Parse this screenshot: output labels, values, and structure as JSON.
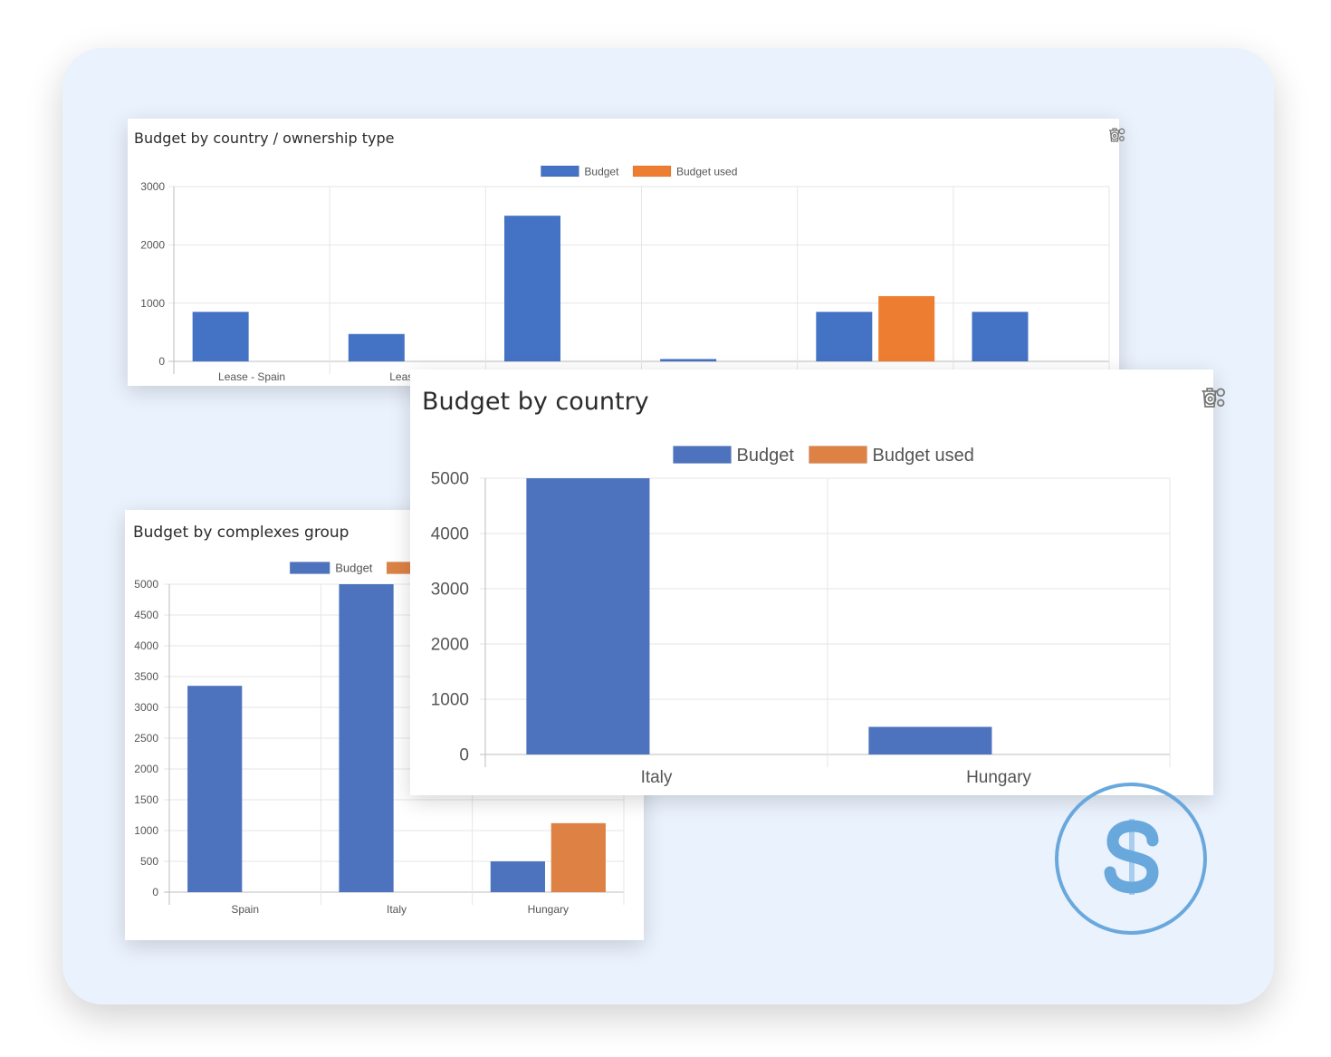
{
  "colors": {
    "budget": "#4472c4",
    "budget_used": "#ed7d31",
    "budget_alt": "#4e73be",
    "budget_used_alt": "#dd8244",
    "dollar": "#69a8dc",
    "grid": "#e6e6e6",
    "axis": "#bdbdbd",
    "text": "#555555"
  },
  "icons": {
    "settings": "gears-icon",
    "delete": "trash-icon",
    "badge": "dollar-icon"
  },
  "chart_data": [
    {
      "id": "ownership",
      "type": "bar",
      "title": "Budget by country / ownership type",
      "legend": {
        "position": "top"
      },
      "categories": [
        "Lease - Spain",
        "Lease -",
        "",
        "",
        "",
        ""
      ],
      "series": [
        {
          "name": "Budget",
          "values": [
            850,
            470,
            2500,
            40,
            850,
            850
          ]
        },
        {
          "name": "Budget used",
          "values": [
            0,
            0,
            0,
            0,
            1120,
            0
          ]
        }
      ],
      "ylim": [
        0,
        3000
      ],
      "yticks": [
        0,
        1000,
        2000,
        3000
      ],
      "grid": true
    },
    {
      "id": "complexes",
      "type": "bar",
      "title": "Budget by complexes group",
      "legend": {
        "position": "top"
      },
      "categories": [
        "Spain",
        "Italy",
        "Hungary"
      ],
      "series": [
        {
          "name": "Budget",
          "values": [
            3350,
            5000,
            500
          ]
        },
        {
          "name": "Budget used",
          "values": [
            0,
            0,
            1120
          ]
        }
      ],
      "ylim": [
        0,
        5000
      ],
      "yticks": [
        0,
        500,
        1000,
        1500,
        2000,
        2500,
        3000,
        3500,
        4000,
        4500,
        5000
      ],
      "grid": true
    },
    {
      "id": "country",
      "type": "bar",
      "title": "Budget by country",
      "legend": {
        "position": "top"
      },
      "categories": [
        "Italy",
        "Hungary"
      ],
      "series": [
        {
          "name": "Budget",
          "values": [
            5000,
            500
          ]
        },
        {
          "name": "Budget used",
          "values": [
            0,
            0
          ]
        }
      ],
      "ylim": [
        0,
        5000
      ],
      "yticks": [
        0,
        1000,
        2000,
        3000,
        4000,
        5000
      ],
      "grid": true
    }
  ]
}
